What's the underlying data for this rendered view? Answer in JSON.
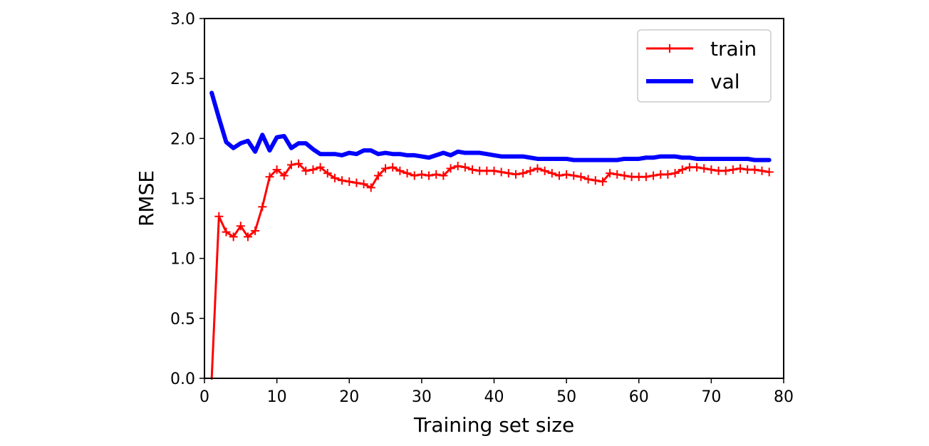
{
  "chart_data": {
    "type": "line",
    "title": "",
    "xlabel": "Training set size",
    "ylabel": "RMSE",
    "xlim": [
      0,
      80
    ],
    "ylim": [
      0,
      3.0
    ],
    "xticks": [
      0,
      10,
      20,
      30,
      40,
      50,
      60,
      70,
      80
    ],
    "yticks": [
      0.0,
      0.5,
      1.0,
      1.5,
      2.0,
      2.5,
      3.0
    ],
    "xtick_labels": [
      "0",
      "10",
      "20",
      "30",
      "40",
      "50",
      "60",
      "70",
      "80"
    ],
    "ytick_labels": [
      "0.0",
      "0.5",
      "1.0",
      "1.5",
      "2.0",
      "2.5",
      "3.0"
    ],
    "grid": false,
    "legend_position": "top-right",
    "x": [
      1,
      2,
      3,
      4,
      5,
      6,
      7,
      8,
      9,
      10,
      11,
      12,
      13,
      14,
      15,
      16,
      17,
      18,
      19,
      20,
      21,
      22,
      23,
      24,
      25,
      26,
      27,
      28,
      29,
      30,
      31,
      32,
      33,
      34,
      35,
      36,
      37,
      38,
      39,
      40,
      41,
      42,
      43,
      44,
      45,
      46,
      47,
      48,
      49,
      50,
      51,
      52,
      53,
      54,
      55,
      56,
      57,
      58,
      59,
      60,
      61,
      62,
      63,
      64,
      65,
      66,
      67,
      68,
      69,
      70,
      71,
      72,
      73,
      74,
      75,
      76,
      77,
      78
    ],
    "series": [
      {
        "name": "train",
        "color": "#ff0000",
        "marker": "plus",
        "line_width": 3,
        "values": [
          0.0,
          1.35,
          1.22,
          1.18,
          1.27,
          1.18,
          1.23,
          1.43,
          1.68,
          1.74,
          1.69,
          1.78,
          1.79,
          1.73,
          1.74,
          1.76,
          1.71,
          1.67,
          1.65,
          1.64,
          1.63,
          1.62,
          1.59,
          1.69,
          1.75,
          1.76,
          1.73,
          1.71,
          1.69,
          1.7,
          1.69,
          1.7,
          1.69,
          1.75,
          1.77,
          1.76,
          1.74,
          1.73,
          1.73,
          1.73,
          1.72,
          1.71,
          1.7,
          1.71,
          1.73,
          1.75,
          1.73,
          1.71,
          1.69,
          1.7,
          1.69,
          1.68,
          1.66,
          1.65,
          1.64,
          1.71,
          1.7,
          1.69,
          1.68,
          1.68,
          1.68,
          1.69,
          1.7,
          1.7,
          1.71,
          1.74,
          1.76,
          1.76,
          1.75,
          1.74,
          1.73,
          1.73,
          1.74,
          1.75,
          1.74,
          1.74,
          1.73,
          1.72
        ]
      },
      {
        "name": "val",
        "color": "#0000ff",
        "marker": "none",
        "line_width": 6,
        "values": [
          2.38,
          2.17,
          1.97,
          1.92,
          1.96,
          1.98,
          1.89,
          2.03,
          1.9,
          2.01,
          2.02,
          1.92,
          1.96,
          1.96,
          1.91,
          1.87,
          1.87,
          1.87,
          1.86,
          1.88,
          1.87,
          1.9,
          1.9,
          1.87,
          1.88,
          1.87,
          1.87,
          1.86,
          1.86,
          1.85,
          1.84,
          1.86,
          1.88,
          1.86,
          1.89,
          1.88,
          1.88,
          1.88,
          1.87,
          1.86,
          1.85,
          1.85,
          1.85,
          1.85,
          1.84,
          1.83,
          1.83,
          1.83,
          1.83,
          1.83,
          1.82,
          1.82,
          1.82,
          1.82,
          1.82,
          1.82,
          1.82,
          1.83,
          1.83,
          1.83,
          1.84,
          1.84,
          1.85,
          1.85,
          1.85,
          1.84,
          1.84,
          1.83,
          1.83,
          1.83,
          1.83,
          1.83,
          1.83,
          1.83,
          1.83,
          1.82,
          1.82,
          1.82
        ]
      }
    ]
  }
}
